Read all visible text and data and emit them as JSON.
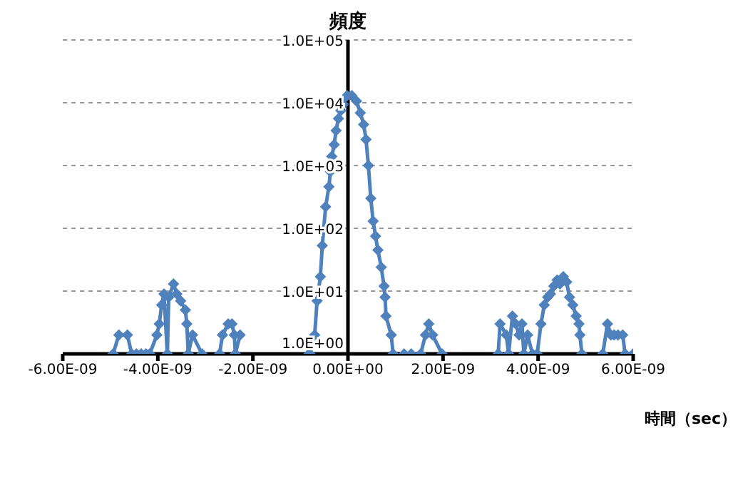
{
  "chart_data": {
    "type": "line",
    "title": "頻度",
    "xlabel": "時間（sec）",
    "x": [
      -4.94e-09,
      -4.82e-09,
      -4.64e-09,
      -4.55e-09,
      -4.45e-09,
      -4.35e-09,
      -4.25e-09,
      -4.17e-09,
      -4.02e-09,
      -3.97e-09,
      -3.92e-09,
      -3.87e-09,
      -3.8e-09,
      -3.77e-09,
      -3.67e-09,
      -3.6e-09,
      -3.52e-09,
      -3.42e-09,
      -3.39e-09,
      -3.36e-09,
      -3.27e-09,
      -3.07e-09,
      -2.9e-09,
      -2.7e-09,
      -2.64e-09,
      -2.52e-09,
      -2.44e-09,
      -2.39e-09,
      -2.37e-09,
      -2.27e-09,
      -1.5e-09,
      -8.2e-10,
      -8e-10,
      -7e-10,
      -6.5e-10,
      -5.8e-10,
      -5.4e-10,
      -4.7e-10,
      -4e-10,
      -3.7e-10,
      -3.4e-10,
      -2.9e-10,
      -2.5e-10,
      -2e-10,
      -1.5e-10,
      -1e-10,
      -2e-11,
      8e-11,
      1.8e-10,
      2.6e-10,
      3.3e-10,
      3.8e-10,
      4.3e-10,
      4.8e-10,
      5.3e-10,
      5.8e-10,
      6.3e-10,
      7e-10,
      7.6e-10,
      7.8e-10,
      8e-10,
      9.1e-10,
      9.5e-10,
      1.18e-09,
      1.33e-09,
      1.53e-09,
      1.63e-09,
      1.7e-09,
      1.78e-09,
      1.98e-09,
      2.5e-09,
      3.16e-09,
      3.2e-09,
      3.33e-09,
      3.38e-09,
      3.46e-09,
      3.53e-09,
      3.6e-09,
      3.66e-09,
      3.7e-09,
      3.78e-09,
      3.88e-09,
      3.98e-09,
      4.06e-09,
      4.13e-09,
      4.2e-09,
      4.26e-09,
      4.33e-09,
      4.4e-09,
      4.46e-09,
      4.53e-09,
      4.6e-09,
      4.66e-09,
      4.73e-09,
      4.8e-09,
      4.86e-09,
      4.88e-09,
      4.92e-09,
      5.1e-09,
      5.36e-09,
      5.46e-09,
      5.53e-09,
      5.6e-09,
      5.68e-09,
      5.78e-09,
      5.83e-09,
      6e-09
    ],
    "series": [
      {
        "color": "#4f81bd",
        "values": [
          1,
          2,
          2,
          1,
          1,
          1,
          1,
          1,
          2,
          3,
          6,
          9,
          1,
          8,
          13,
          9,
          7,
          5,
          3,
          1,
          2,
          1,
          null,
          1,
          2,
          3,
          3,
          2,
          1,
          2,
          null,
          1,
          1,
          2,
          7,
          17,
          53,
          220,
          460,
          800,
          1400,
          2150,
          3600,
          5600,
          7500,
          9400,
          13000,
          13000,
          10600,
          6900,
          4500,
          2600,
          1000,
          300,
          130,
          75,
          45,
          24,
          12,
          8,
          4,
          2,
          1,
          1,
          1,
          1,
          2,
          3,
          2,
          1,
          null,
          1,
          3,
          2,
          1,
          4,
          3,
          2,
          3,
          1,
          2,
          1,
          1,
          3,
          6,
          8,
          9,
          12,
          15,
          13,
          17,
          14,
          8,
          6,
          4,
          3,
          2,
          1,
          null,
          1,
          3,
          2,
          2,
          2,
          2,
          1,
          1
        ]
      }
    ],
    "xlim": [
      -6e-09,
      6e-09
    ],
    "xticks": [
      {
        "value": -6e-09,
        "label": "-6.00E-09"
      },
      {
        "value": -4e-09,
        "label": "-4.00E-09"
      },
      {
        "value": -2e-09,
        "label": "-2.00E-09"
      },
      {
        "value": 0,
        "label": "0.00E+00"
      },
      {
        "value": 2e-09,
        "label": "2.00E-09"
      },
      {
        "value": 4e-09,
        "label": "4.00E-09"
      },
      {
        "value": 6e-09,
        "label": "6.00E-09"
      }
    ],
    "ylim": [
      1,
      100000
    ],
    "yticks": [
      {
        "value": 1,
        "label": "1.0E+00"
      },
      {
        "value": 10,
        "label": "1.0E+01"
      },
      {
        "value": 100,
        "label": "1.0E+02"
      },
      {
        "value": 1000,
        "label": "1.0E+03"
      },
      {
        "value": 10000,
        "label": "1.0E+04"
      },
      {
        "value": 100000,
        "label": "1.0E+05"
      }
    ],
    "log": true,
    "grid": "y",
    "marker": "diamond",
    "line_style": "solid",
    "legend": false
  }
}
